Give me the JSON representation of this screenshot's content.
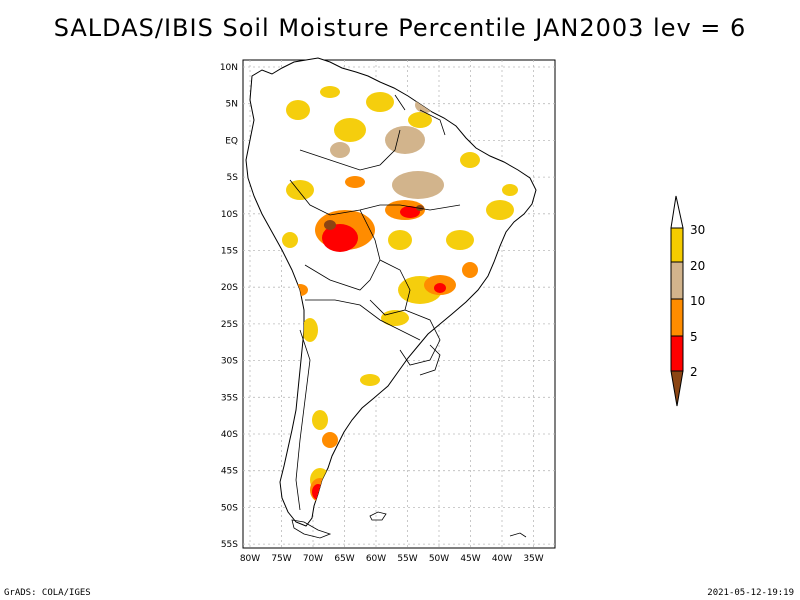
{
  "title": "SALDAS/IBIS Soil Moisture Percentile JAN2003 lev = 6",
  "lat_labels": [
    "10N",
    "5N",
    "EQ",
    "5S",
    "10S",
    "15S",
    "20S",
    "25S",
    "30S",
    "35S",
    "40S",
    "45S",
    "50S",
    "55S"
  ],
  "lon_labels": [
    "80W",
    "75W",
    "70W",
    "65W",
    "60W",
    "55W",
    "50W",
    "45W",
    "40W",
    "35W"
  ],
  "legend": {
    "levels": [
      "30",
      "20",
      "10",
      "5",
      "2"
    ],
    "colors": {
      "above30": "#ffffff",
      "p20_30": "#f5cc00",
      "p10_20": "#d2b48c",
      "p5_10": "#ff8c00",
      "p2_5": "#ff0000",
      "below2": "#8b4513"
    }
  },
  "footer_left": "GrADS: COLA/IGES",
  "footer_right": "2021-05-12-19:19"
}
